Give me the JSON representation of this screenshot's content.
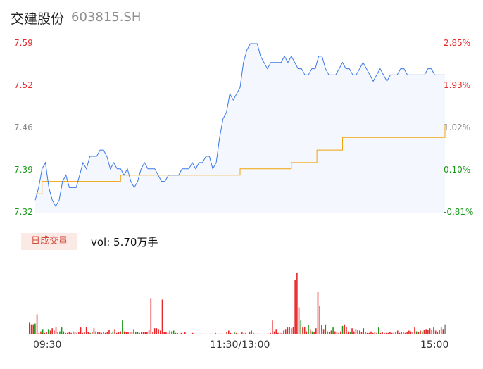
{
  "header": {
    "name": "交建股份",
    "code": "603815.SH"
  },
  "colors": {
    "up": "#e8272a",
    "down": "#1a9a1a",
    "flat": "#888888",
    "price_line": "#3b78e7",
    "avg_line": "#f0a30a",
    "area_fill": "#f4f7fd"
  },
  "volume_panel": {
    "badge": "日成交量",
    "vol_label": "vol: 5.70万手"
  },
  "chart_data": [
    {
      "type": "line",
      "yaxis_left_ticks": [
        "7.59",
        "7.52",
        "7.46",
        "7.39",
        "7.32"
      ],
      "yaxis_right_ticks": [
        "2.85%",
        "1.93%",
        "1.02%",
        "0.10%",
        "-0.81%"
      ],
      "x_ticks": [
        "09:30",
        "11:30/13:00",
        "15:00"
      ],
      "ylim": [
        7.32,
        7.59
      ],
      "grid": false,
      "series": [
        {
          "role": "price",
          "x": [
            0,
            2,
            4,
            6,
            8,
            10,
            12,
            14,
            16,
            18,
            20,
            22,
            24,
            26,
            28,
            30,
            32,
            34,
            36,
            38,
            40,
            42,
            44,
            46,
            48,
            50,
            52,
            54,
            56,
            58,
            60,
            62,
            64,
            66,
            68,
            70,
            72,
            74,
            76,
            78,
            80,
            82,
            84,
            86,
            88,
            90,
            92,
            94,
            96,
            98,
            100,
            102,
            104,
            106,
            108,
            110,
            112,
            114,
            116,
            118,
            120,
            122,
            124,
            126,
            128,
            130,
            132,
            134,
            136,
            138,
            140,
            142,
            144,
            146,
            148,
            150,
            152,
            154,
            156,
            158,
            160,
            162,
            164,
            166,
            168,
            170,
            172,
            174,
            176,
            178,
            180,
            182,
            184,
            186,
            188,
            190,
            192,
            194,
            196,
            198,
            200,
            202,
            204,
            206,
            208,
            210,
            212,
            214,
            216,
            218,
            220,
            222,
            224,
            226,
            228,
            230,
            232,
            234,
            236,
            238,
            240
          ],
          "values": [
            7.34,
            7.36,
            7.39,
            7.4,
            7.36,
            7.34,
            7.33,
            7.34,
            7.37,
            7.38,
            7.36,
            7.36,
            7.36,
            7.38,
            7.4,
            7.39,
            7.41,
            7.41,
            7.41,
            7.42,
            7.42,
            7.41,
            7.39,
            7.4,
            7.39,
            7.39,
            7.38,
            7.39,
            7.37,
            7.36,
            7.37,
            7.39,
            7.4,
            7.39,
            7.39,
            7.39,
            7.38,
            7.37,
            7.37,
            7.38,
            7.38,
            7.38,
            7.38,
            7.39,
            7.39,
            7.39,
            7.4,
            7.39,
            7.4,
            7.4,
            7.41,
            7.41,
            7.39,
            7.4,
            7.44,
            7.47,
            7.48,
            7.51,
            7.5,
            7.51,
            7.52,
            7.56,
            7.58,
            7.59,
            7.59,
            7.59,
            7.57,
            7.56,
            7.55,
            7.56,
            7.56,
            7.56,
            7.56,
            7.57,
            7.56,
            7.57,
            7.56,
            7.55,
            7.55,
            7.54,
            7.54,
            7.55,
            7.55,
            7.57,
            7.57,
            7.55,
            7.54,
            7.54,
            7.54,
            7.55,
            7.56,
            7.55,
            7.55,
            7.54,
            7.54,
            7.55,
            7.56,
            7.55,
            7.54,
            7.53,
            7.54,
            7.55,
            7.54,
            7.53,
            7.54,
            7.54,
            7.54,
            7.55,
            7.55,
            7.54,
            7.54,
            7.54,
            7.54,
            7.54,
            7.54,
            7.55,
            7.55,
            7.54,
            7.54,
            7.54,
            7.54
          ]
        },
        {
          "role": "avg",
          "x": [
            0,
            1,
            4,
            20,
            50,
            75,
            100,
            119,
            120,
            145,
            150,
            165,
            180,
            240
          ],
          "values": [
            7.35,
            7.35,
            7.37,
            7.37,
            7.38,
            7.38,
            7.38,
            7.38,
            7.39,
            7.39,
            7.4,
            7.42,
            7.44,
            7.46
          ]
        }
      ]
    },
    {
      "type": "bar",
      "x_ticks": [
        "09:30",
        "11:30/13:00",
        "15:00"
      ],
      "bars": [
        {
          "h": 0.16,
          "c": "up"
        },
        {
          "h": 0.13,
          "c": "up"
        },
        {
          "h": 0.13,
          "c": "up"
        },
        {
          "h": 0.14,
          "c": "down"
        },
        {
          "h": 0.26,
          "c": "up"
        },
        {
          "h": 0.02,
          "c": "up"
        },
        {
          "h": 0.04,
          "c": "up"
        },
        {
          "h": 0.07,
          "c": "down"
        },
        {
          "h": 0.02,
          "c": "up"
        },
        {
          "h": 0.03,
          "c": "up"
        },
        {
          "h": 0.07,
          "c": "down"
        },
        {
          "h": 0.05,
          "c": "up"
        },
        {
          "h": 0.08,
          "c": "up"
        },
        {
          "h": 0.05,
          "c": "up"
        },
        {
          "h": 0.1,
          "c": "up"
        },
        {
          "h": 0.03,
          "c": "up"
        },
        {
          "h": 0.04,
          "c": "down"
        },
        {
          "h": 0.09,
          "c": "down"
        },
        {
          "h": 0.04,
          "c": "up"
        },
        {
          "h": 0.02,
          "c": "up"
        },
        {
          "h": 0.02,
          "c": "up"
        },
        {
          "h": 0.03,
          "c": "up"
        },
        {
          "h": 0.02,
          "c": "up"
        },
        {
          "h": 0.04,
          "c": "down"
        },
        {
          "h": 0.03,
          "c": "up"
        },
        {
          "h": 0.02,
          "c": "up"
        },
        {
          "h": 0.03,
          "c": "up"
        },
        {
          "h": 0.09,
          "c": "up"
        },
        {
          "h": 0.02,
          "c": "up"
        },
        {
          "h": 0.03,
          "c": "up"
        },
        {
          "h": 0.1,
          "c": "up"
        },
        {
          "h": 0.03,
          "c": "up"
        },
        {
          "h": 0.02,
          "c": "down"
        },
        {
          "h": 0.03,
          "c": "up"
        },
        {
          "h": 0.08,
          "c": "up"
        },
        {
          "h": 0.04,
          "c": "up"
        },
        {
          "h": 0.03,
          "c": "up"
        },
        {
          "h": 0.03,
          "c": "up"
        },
        {
          "h": 0.02,
          "c": "up"
        },
        {
          "h": 0.03,
          "c": "up"
        },
        {
          "h": 0.02,
          "c": "up"
        },
        {
          "h": 0.03,
          "c": "up"
        },
        {
          "h": 0.06,
          "c": "up"
        },
        {
          "h": 0.02,
          "c": "up"
        },
        {
          "h": 0.04,
          "c": "down"
        },
        {
          "h": 0.07,
          "c": "up"
        },
        {
          "h": 0.02,
          "c": "up"
        },
        {
          "h": 0.03,
          "c": "up"
        },
        {
          "h": 0.04,
          "c": "up"
        },
        {
          "h": 0.18,
          "c": "down"
        },
        {
          "h": 0.04,
          "c": "up"
        },
        {
          "h": 0.03,
          "c": "up"
        },
        {
          "h": 0.03,
          "c": "up"
        },
        {
          "h": 0.03,
          "c": "up"
        },
        {
          "h": 0.03,
          "c": "up"
        },
        {
          "h": 0.07,
          "c": "up"
        },
        {
          "h": 0.03,
          "c": "down"
        },
        {
          "h": 0.03,
          "c": "up"
        },
        {
          "h": 0.02,
          "c": "up"
        },
        {
          "h": 0.03,
          "c": "up"
        },
        {
          "h": 0.03,
          "c": "up"
        },
        {
          "h": 0.03,
          "c": "up"
        },
        {
          "h": 0.03,
          "c": "up"
        },
        {
          "h": 0.06,
          "c": "up"
        },
        {
          "h": 0.47,
          "c": "up"
        },
        {
          "h": 0.03,
          "c": "up"
        },
        {
          "h": 0.08,
          "c": "up"
        },
        {
          "h": 0.08,
          "c": "up"
        },
        {
          "h": 0.07,
          "c": "up"
        },
        {
          "h": 0.05,
          "c": "up"
        },
        {
          "h": 0.45,
          "c": "up"
        },
        {
          "h": 0.03,
          "c": "up"
        },
        {
          "h": 0.03,
          "c": "up"
        },
        {
          "h": 0.02,
          "c": "up"
        },
        {
          "h": 0.05,
          "c": "up"
        },
        {
          "h": 0.04,
          "c": "up"
        },
        {
          "h": 0.05,
          "c": "down"
        },
        {
          "h": 0.02,
          "c": "up"
        },
        {
          "h": 0.02,
          "c": "up"
        },
        {
          "h": 0.01,
          "c": "up"
        },
        {
          "h": 0.02,
          "c": "up"
        },
        {
          "h": 0.01,
          "c": "up"
        },
        {
          "h": 0.03,
          "c": "up"
        },
        {
          "h": 0.01,
          "c": "up"
        },
        {
          "h": 0.01,
          "c": "up"
        },
        {
          "h": 0.01,
          "c": "up"
        },
        {
          "h": 0.02,
          "c": "up"
        },
        {
          "h": 0.01,
          "c": "up"
        },
        {
          "h": 0.01,
          "c": "up"
        },
        {
          "h": 0.01,
          "c": "up"
        },
        {
          "h": 0.01,
          "c": "up"
        },
        {
          "h": 0.01,
          "c": "up"
        },
        {
          "h": 0.01,
          "c": "up"
        },
        {
          "h": 0.01,
          "c": "up"
        },
        {
          "h": 0.01,
          "c": "up"
        },
        {
          "h": 0.01,
          "c": "up"
        },
        {
          "h": 0.01,
          "c": "up"
        },
        {
          "h": 0.01,
          "c": "up"
        },
        {
          "h": 0.02,
          "c": "up"
        },
        {
          "h": 0.01,
          "c": "up"
        },
        {
          "h": 0.01,
          "c": "up"
        },
        {
          "h": 0.01,
          "c": "up"
        },
        {
          "h": 0.01,
          "c": "up"
        },
        {
          "h": 0.01,
          "c": "up"
        },
        {
          "h": 0.03,
          "c": "up"
        },
        {
          "h": 0.05,
          "c": "up"
        },
        {
          "h": 0.02,
          "c": "up"
        },
        {
          "h": 0.01,
          "c": "up"
        },
        {
          "h": 0.03,
          "c": "down"
        },
        {
          "h": 0.02,
          "c": "up"
        },
        {
          "h": 0.01,
          "c": "up"
        },
        {
          "h": 0.01,
          "c": "up"
        },
        {
          "h": 0.03,
          "c": "up"
        },
        {
          "h": 0.02,
          "c": "up"
        },
        {
          "h": 0.02,
          "c": "up"
        },
        {
          "h": 0.01,
          "c": "up"
        },
        {
          "h": 0.03,
          "c": "up"
        },
        {
          "h": 0.05,
          "c": "down"
        },
        {
          "h": 0.02,
          "c": "up"
        },
        {
          "h": 0.01,
          "c": "up"
        },
        {
          "h": 0.01,
          "c": "up"
        },
        {
          "h": 0.01,
          "c": "up"
        },
        {
          "h": 0.01,
          "c": "up"
        },
        {
          "h": 0.01,
          "c": "up"
        },
        {
          "h": 0.01,
          "c": "up"
        },
        {
          "h": 0.01,
          "c": "up"
        },
        {
          "h": 0.01,
          "c": "up"
        },
        {
          "h": 0.02,
          "c": "up"
        },
        {
          "h": 0.18,
          "c": "up"
        },
        {
          "h": 0.04,
          "c": "up"
        },
        {
          "h": 0.07,
          "c": "up"
        },
        {
          "h": 0.02,
          "c": "up"
        },
        {
          "h": 0.02,
          "c": "up"
        },
        {
          "h": 0.02,
          "c": "up"
        },
        {
          "h": 0.05,
          "c": "up"
        },
        {
          "h": 0.07,
          "c": "up"
        },
        {
          "h": 0.09,
          "c": "up"
        },
        {
          "h": 0.1,
          "c": "up"
        },
        {
          "h": 0.08,
          "c": "up"
        },
        {
          "h": 0.1,
          "c": "up"
        },
        {
          "h": 0.7,
          "c": "up"
        },
        {
          "h": 0.8,
          "c": "up"
        },
        {
          "h": 0.35,
          "c": "up"
        },
        {
          "h": 0.18,
          "c": "down"
        },
        {
          "h": 0.09,
          "c": "up"
        },
        {
          "h": 0.1,
          "c": "up"
        },
        {
          "h": 0.04,
          "c": "up"
        },
        {
          "h": 0.12,
          "c": "down"
        },
        {
          "h": 0.07,
          "c": "up"
        },
        {
          "h": 0.04,
          "c": "down"
        },
        {
          "h": 0.03,
          "c": "up"
        },
        {
          "h": 0.08,
          "c": "up"
        },
        {
          "h": 0.55,
          "c": "up"
        },
        {
          "h": 0.37,
          "c": "up"
        },
        {
          "h": 0.12,
          "c": "up"
        },
        {
          "h": 0.07,
          "c": "up"
        },
        {
          "h": 0.13,
          "c": "down"
        },
        {
          "h": 0.04,
          "c": "up"
        },
        {
          "h": 0.03,
          "c": "up"
        },
        {
          "h": 0.05,
          "c": "up"
        },
        {
          "h": 0.09,
          "c": "down"
        },
        {
          "h": 0.04,
          "c": "up"
        },
        {
          "h": 0.03,
          "c": "up"
        },
        {
          "h": 0.02,
          "c": "up"
        },
        {
          "h": 0.04,
          "c": "up"
        },
        {
          "h": 0.11,
          "c": "down"
        },
        {
          "h": 0.13,
          "c": "up"
        },
        {
          "h": 0.1,
          "c": "up"
        },
        {
          "h": 0.04,
          "c": "up"
        },
        {
          "h": 0.03,
          "c": "down"
        },
        {
          "h": 0.08,
          "c": "up"
        },
        {
          "h": 0.04,
          "c": "up"
        },
        {
          "h": 0.07,
          "c": "up"
        },
        {
          "h": 0.06,
          "c": "up"
        },
        {
          "h": 0.05,
          "c": "up"
        },
        {
          "h": 0.03,
          "c": "up"
        },
        {
          "h": 0.08,
          "c": "up"
        },
        {
          "h": 0.03,
          "c": "up"
        },
        {
          "h": 0.02,
          "c": "up"
        },
        {
          "h": 0.02,
          "c": "up"
        },
        {
          "h": 0.04,
          "c": "up"
        },
        {
          "h": 0.02,
          "c": "up"
        },
        {
          "h": 0.03,
          "c": "up"
        },
        {
          "h": 0.02,
          "c": "up"
        },
        {
          "h": 0.09,
          "c": "down"
        },
        {
          "h": 0.02,
          "c": "up"
        },
        {
          "h": 0.03,
          "c": "up"
        },
        {
          "h": 0.02,
          "c": "up"
        },
        {
          "h": 0.02,
          "c": "up"
        },
        {
          "h": 0.02,
          "c": "up"
        },
        {
          "h": 0.03,
          "c": "up"
        },
        {
          "h": 0.02,
          "c": "up"
        },
        {
          "h": 0.02,
          "c": "up"
        },
        {
          "h": 0.03,
          "c": "up"
        },
        {
          "h": 0.05,
          "c": "up"
        },
        {
          "h": 0.02,
          "c": "up"
        },
        {
          "h": 0.03,
          "c": "up"
        },
        {
          "h": 0.03,
          "c": "up"
        },
        {
          "h": 0.02,
          "c": "up"
        },
        {
          "h": 0.03,
          "c": "up"
        },
        {
          "h": 0.05,
          "c": "up"
        },
        {
          "h": 0.04,
          "c": "up"
        },
        {
          "h": 0.03,
          "c": "up"
        },
        {
          "h": 0.09,
          "c": "up"
        },
        {
          "h": 0.04,
          "c": "down"
        },
        {
          "h": 0.03,
          "c": "up"
        },
        {
          "h": 0.05,
          "c": "up"
        },
        {
          "h": 0.04,
          "c": "down"
        },
        {
          "h": 0.06,
          "c": "up"
        },
        {
          "h": 0.07,
          "c": "up"
        },
        {
          "h": 0.06,
          "c": "up"
        },
        {
          "h": 0.08,
          "c": "up"
        },
        {
          "h": 0.06,
          "c": "up"
        },
        {
          "h": 0.09,
          "c": "down"
        },
        {
          "h": 0.05,
          "c": "up"
        },
        {
          "h": 0.03,
          "c": "up"
        },
        {
          "h": 0.06,
          "c": "up"
        },
        {
          "h": 0.09,
          "c": "up"
        },
        {
          "h": 0.07,
          "c": "up"
        },
        {
          "h": 0.13,
          "c": "flat"
        }
      ]
    }
  ]
}
